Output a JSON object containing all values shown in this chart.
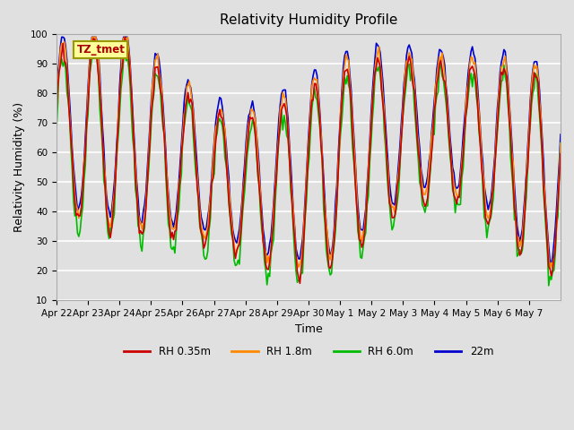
{
  "title": "Relativity Humidity Profile",
  "xlabel": "Time",
  "ylabel": "Relativity Humidity (%)",
  "ylim": [
    10,
    100
  ],
  "yticks": [
    10,
    20,
    30,
    40,
    50,
    60,
    70,
    80,
    90,
    100
  ],
  "colors": {
    "RH 0.35m": "#cc0000",
    "RH 1.8m": "#ff8800",
    "RH 6.0m": "#00bb00",
    "22m": "#0000cc"
  },
  "annotation_text": "TZ_tmet",
  "annotation_box_facecolor": "#ffff99",
  "annotation_text_color": "#aa0000",
  "annotation_edge_color": "#999900",
  "bg_color": "#e0e0e0",
  "grid_color": "#ffffff",
  "xtick_labels": [
    "Apr 22",
    "Apr 23",
    "Apr 24",
    "Apr 25",
    "Apr 26",
    "Apr 27",
    "Apr 28",
    "Apr 29",
    "Apr 30",
    "May 1",
    "May 2",
    "May 3",
    "May 4",
    "May 5",
    "May 6",
    "May 7"
  ],
  "linewidth": 1.2,
  "title_fontsize": 11,
  "label_fontsize": 9,
  "tick_fontsize": 7.5,
  "legend_fontsize": 8.5
}
